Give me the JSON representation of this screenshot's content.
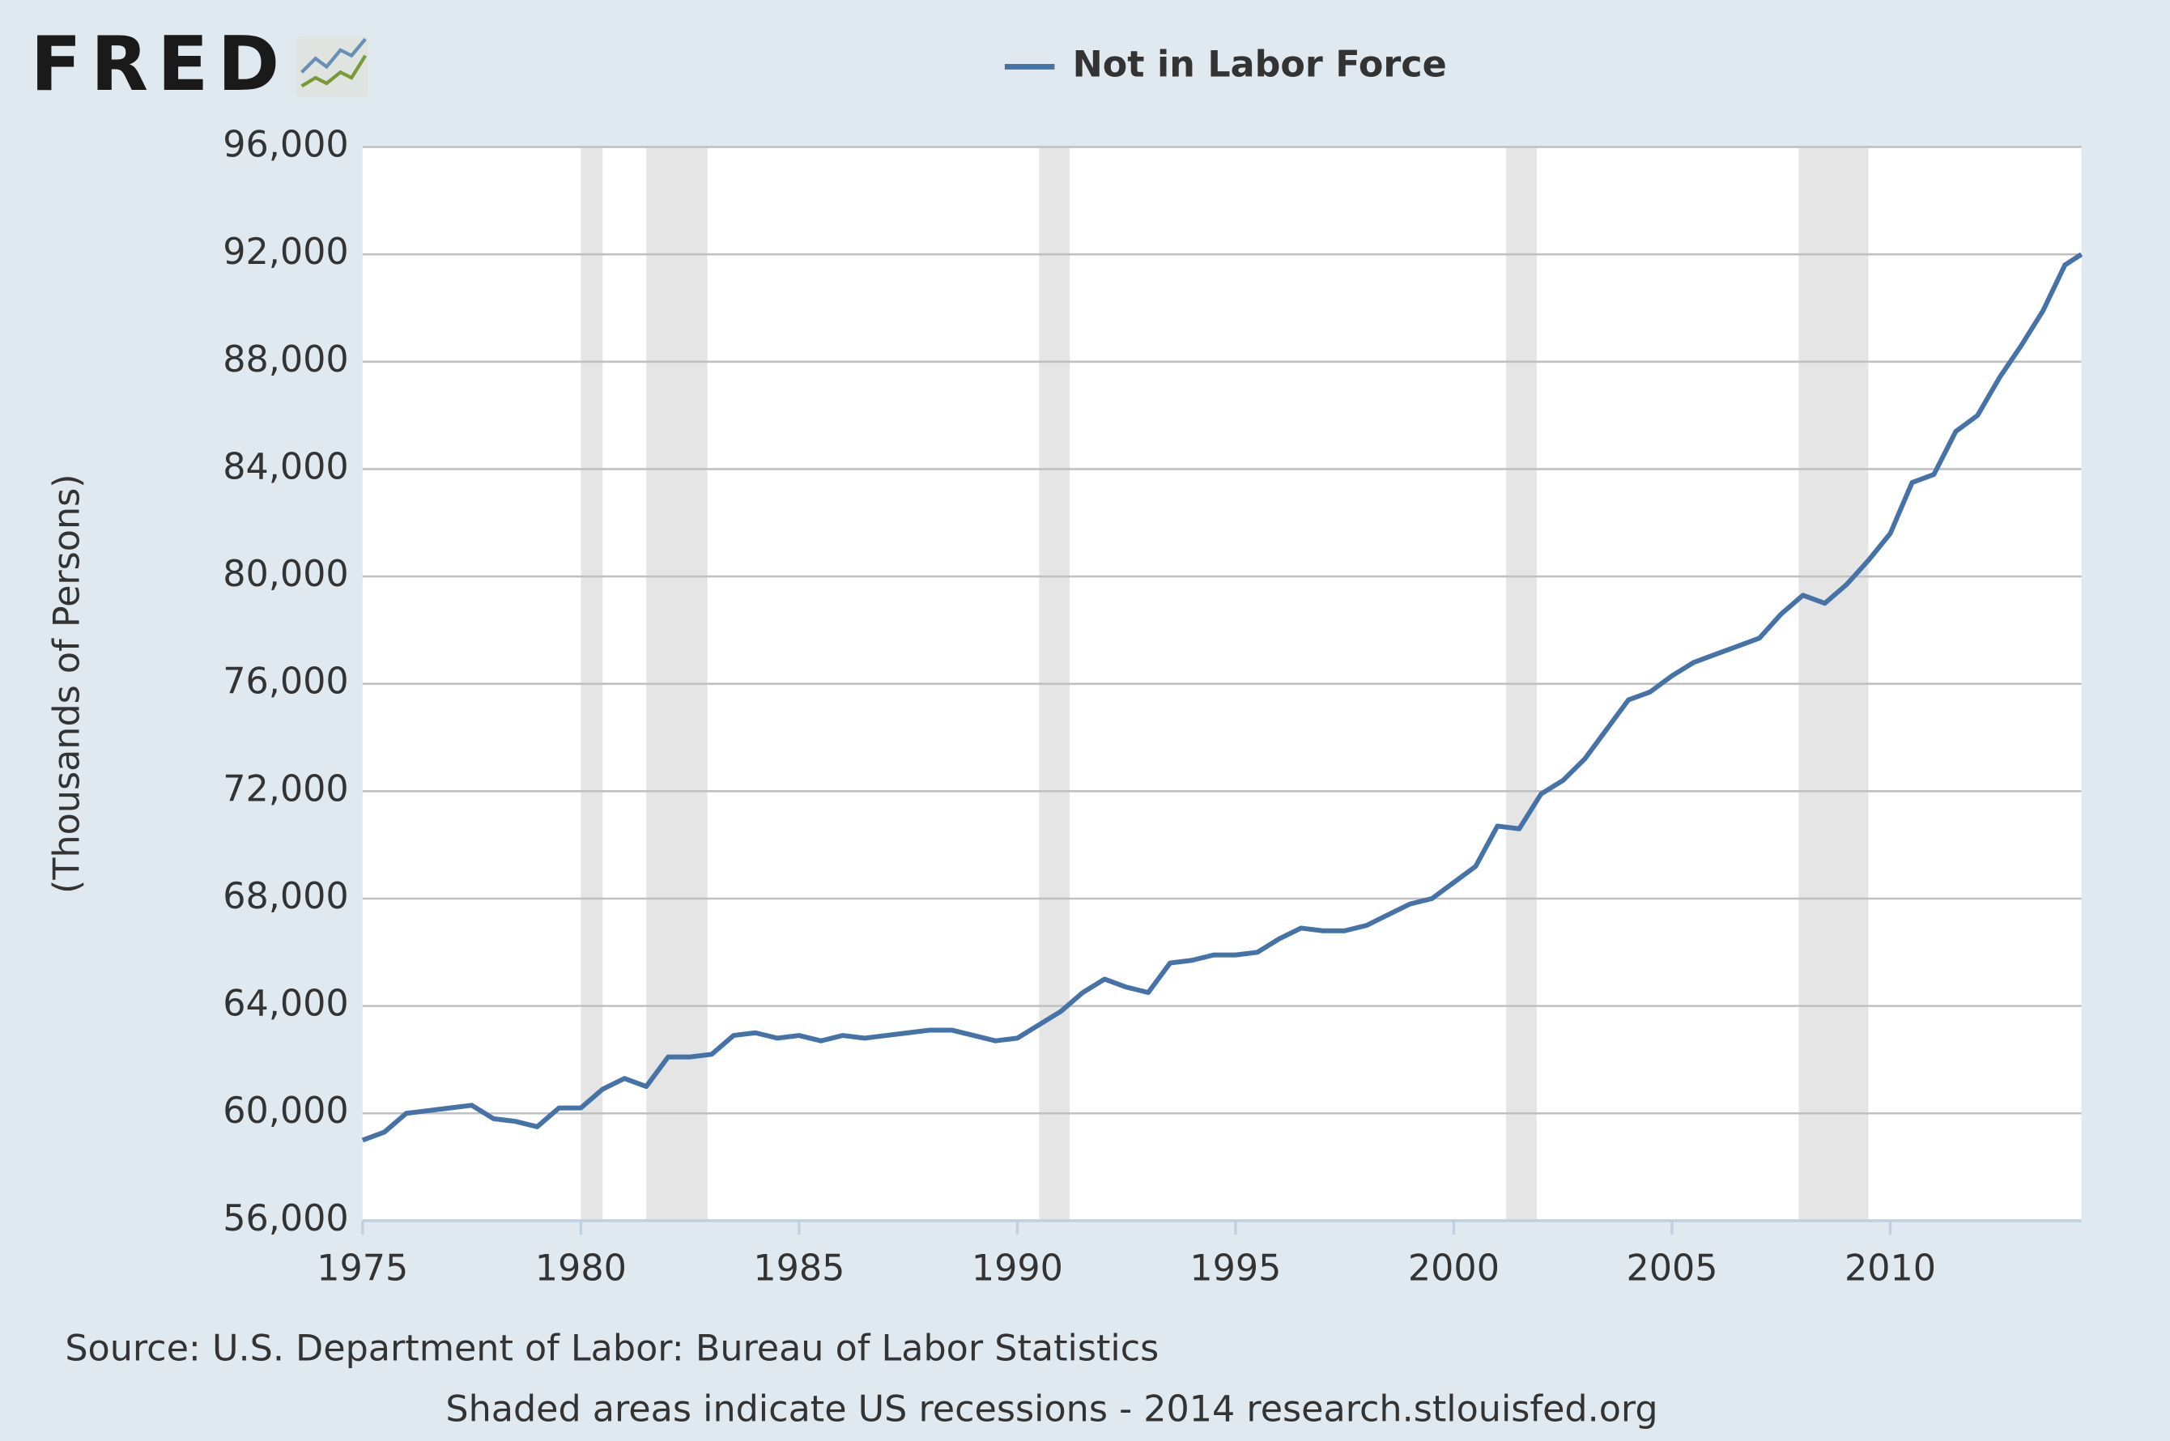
{
  "logo": "FRED",
  "chart_data": {
    "type": "line",
    "ylabel": "(Thousands of Persons)",
    "source": "Source: U.S. Department of Labor: Bureau of Labor Statistics",
    "note": "Shaded areas indicate US recessions - 2014 research.stlouisfed.org",
    "x": [
      1975.0,
      1975.5,
      1976.0,
      1976.5,
      1977.0,
      1977.5,
      1978.0,
      1978.5,
      1979.0,
      1979.5,
      1980.0,
      1980.5,
      1981.0,
      1981.5,
      1982.0,
      1982.5,
      1983.0,
      1983.5,
      1984.0,
      1984.5,
      1985.0,
      1985.5,
      1986.0,
      1986.5,
      1987.0,
      1987.5,
      1988.0,
      1988.5,
      1989.0,
      1989.5,
      1990.0,
      1990.5,
      1991.0,
      1991.5,
      1992.0,
      1992.5,
      1993.0,
      1993.5,
      1994.0,
      1994.5,
      1995.0,
      1995.5,
      1996.0,
      1996.5,
      1997.0,
      1997.5,
      1998.0,
      1998.5,
      1999.0,
      1999.5,
      2000.0,
      2000.5,
      2001.0,
      2001.5,
      2002.0,
      2002.5,
      2003.0,
      2003.5,
      2004.0,
      2004.5,
      2005.0,
      2005.5,
      2006.0,
      2006.5,
      2007.0,
      2007.5,
      2008.0,
      2008.5,
      2009.0,
      2009.5,
      2010.0,
      2010.5,
      2011.0,
      2011.5,
      2012.0,
      2012.5,
      2013.0,
      2013.5,
      2014.0,
      2014.38
    ],
    "series": [
      {
        "name": "Not in Labor Force",
        "color": "#4572a7",
        "values": [
          59000,
          59300,
          60000,
          60100,
          60200,
          60300,
          59800,
          59700,
          59500,
          60200,
          60200,
          60900,
          61300,
          61000,
          62100,
          62100,
          62200,
          62900,
          63000,
          62800,
          62900,
          62700,
          62900,
          62800,
          62900,
          63000,
          63100,
          63100,
          62900,
          62700,
          62800,
          63300,
          63800,
          64500,
          65000,
          64700,
          64500,
          65600,
          65700,
          65900,
          65900,
          66000,
          66500,
          66900,
          66800,
          66800,
          67000,
          67400,
          67800,
          68000,
          68600,
          69200,
          70700,
          70600,
          71900,
          72400,
          73200,
          74300,
          75400,
          75700,
          76300,
          76800,
          77100,
          77400,
          77700,
          78600,
          79300,
          79000,
          79700,
          80600,
          81600,
          83500,
          83800,
          85400,
          86000,
          87400,
          88600,
          89900,
          91600,
          92000
        ]
      }
    ],
    "recessions": [
      [
        1980.0,
        1980.5
      ],
      [
        1981.5,
        1982.9
      ],
      [
        1990.5,
        1991.2
      ],
      [
        2001.2,
        2001.9
      ],
      [
        2007.9,
        2009.5
      ]
    ],
    "recession_color": "#e5e5e5",
    "xlim": [
      1975,
      2014.38
    ],
    "ylim": [
      56000,
      96000
    ],
    "xticks": [
      1975,
      1980,
      1985,
      1990,
      1995,
      2000,
      2005,
      2010
    ],
    "yticks": [
      {
        "value": 56000,
        "label": "56,000"
      },
      {
        "value": 60000,
        "label": "60,000"
      },
      {
        "value": 64000,
        "label": "64,000"
      },
      {
        "value": 68000,
        "label": "68,000"
      },
      {
        "value": 72000,
        "label": "72,000"
      },
      {
        "value": 76000,
        "label": "76,000"
      },
      {
        "value": 80000,
        "label": "80,000"
      },
      {
        "value": 84000,
        "label": "84,000"
      },
      {
        "value": 88000,
        "label": "88,000"
      },
      {
        "value": 92000,
        "label": "92,000"
      },
      {
        "value": 96000,
        "label": "96,000"
      }
    ],
    "grid": true,
    "legend": "top"
  }
}
